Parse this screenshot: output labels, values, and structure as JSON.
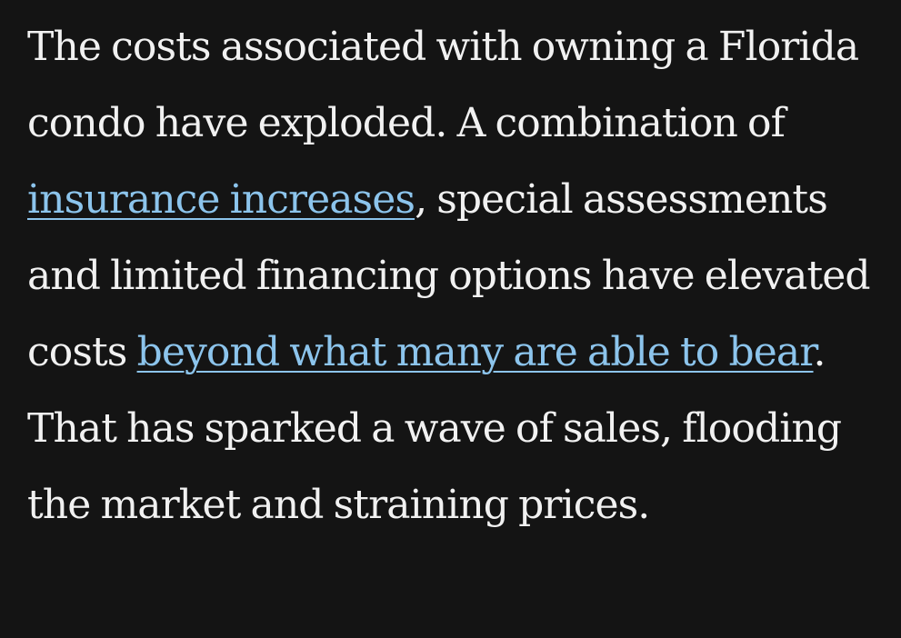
{
  "paragraph": {
    "text_1": "The costs associated with owning a Florida condo have exploded. A combination of ",
    "link_1": "insurance increases",
    "text_2": ", special assessments and limited financing options have elevated costs ",
    "link_2": "beyond what many are able to bear",
    "text_3": ". That has sparked a wave of sales, flooding the market and straining prices."
  },
  "colors": {
    "background": "#141414",
    "text": "#f1f1f1",
    "link": "#8cc4ec"
  }
}
